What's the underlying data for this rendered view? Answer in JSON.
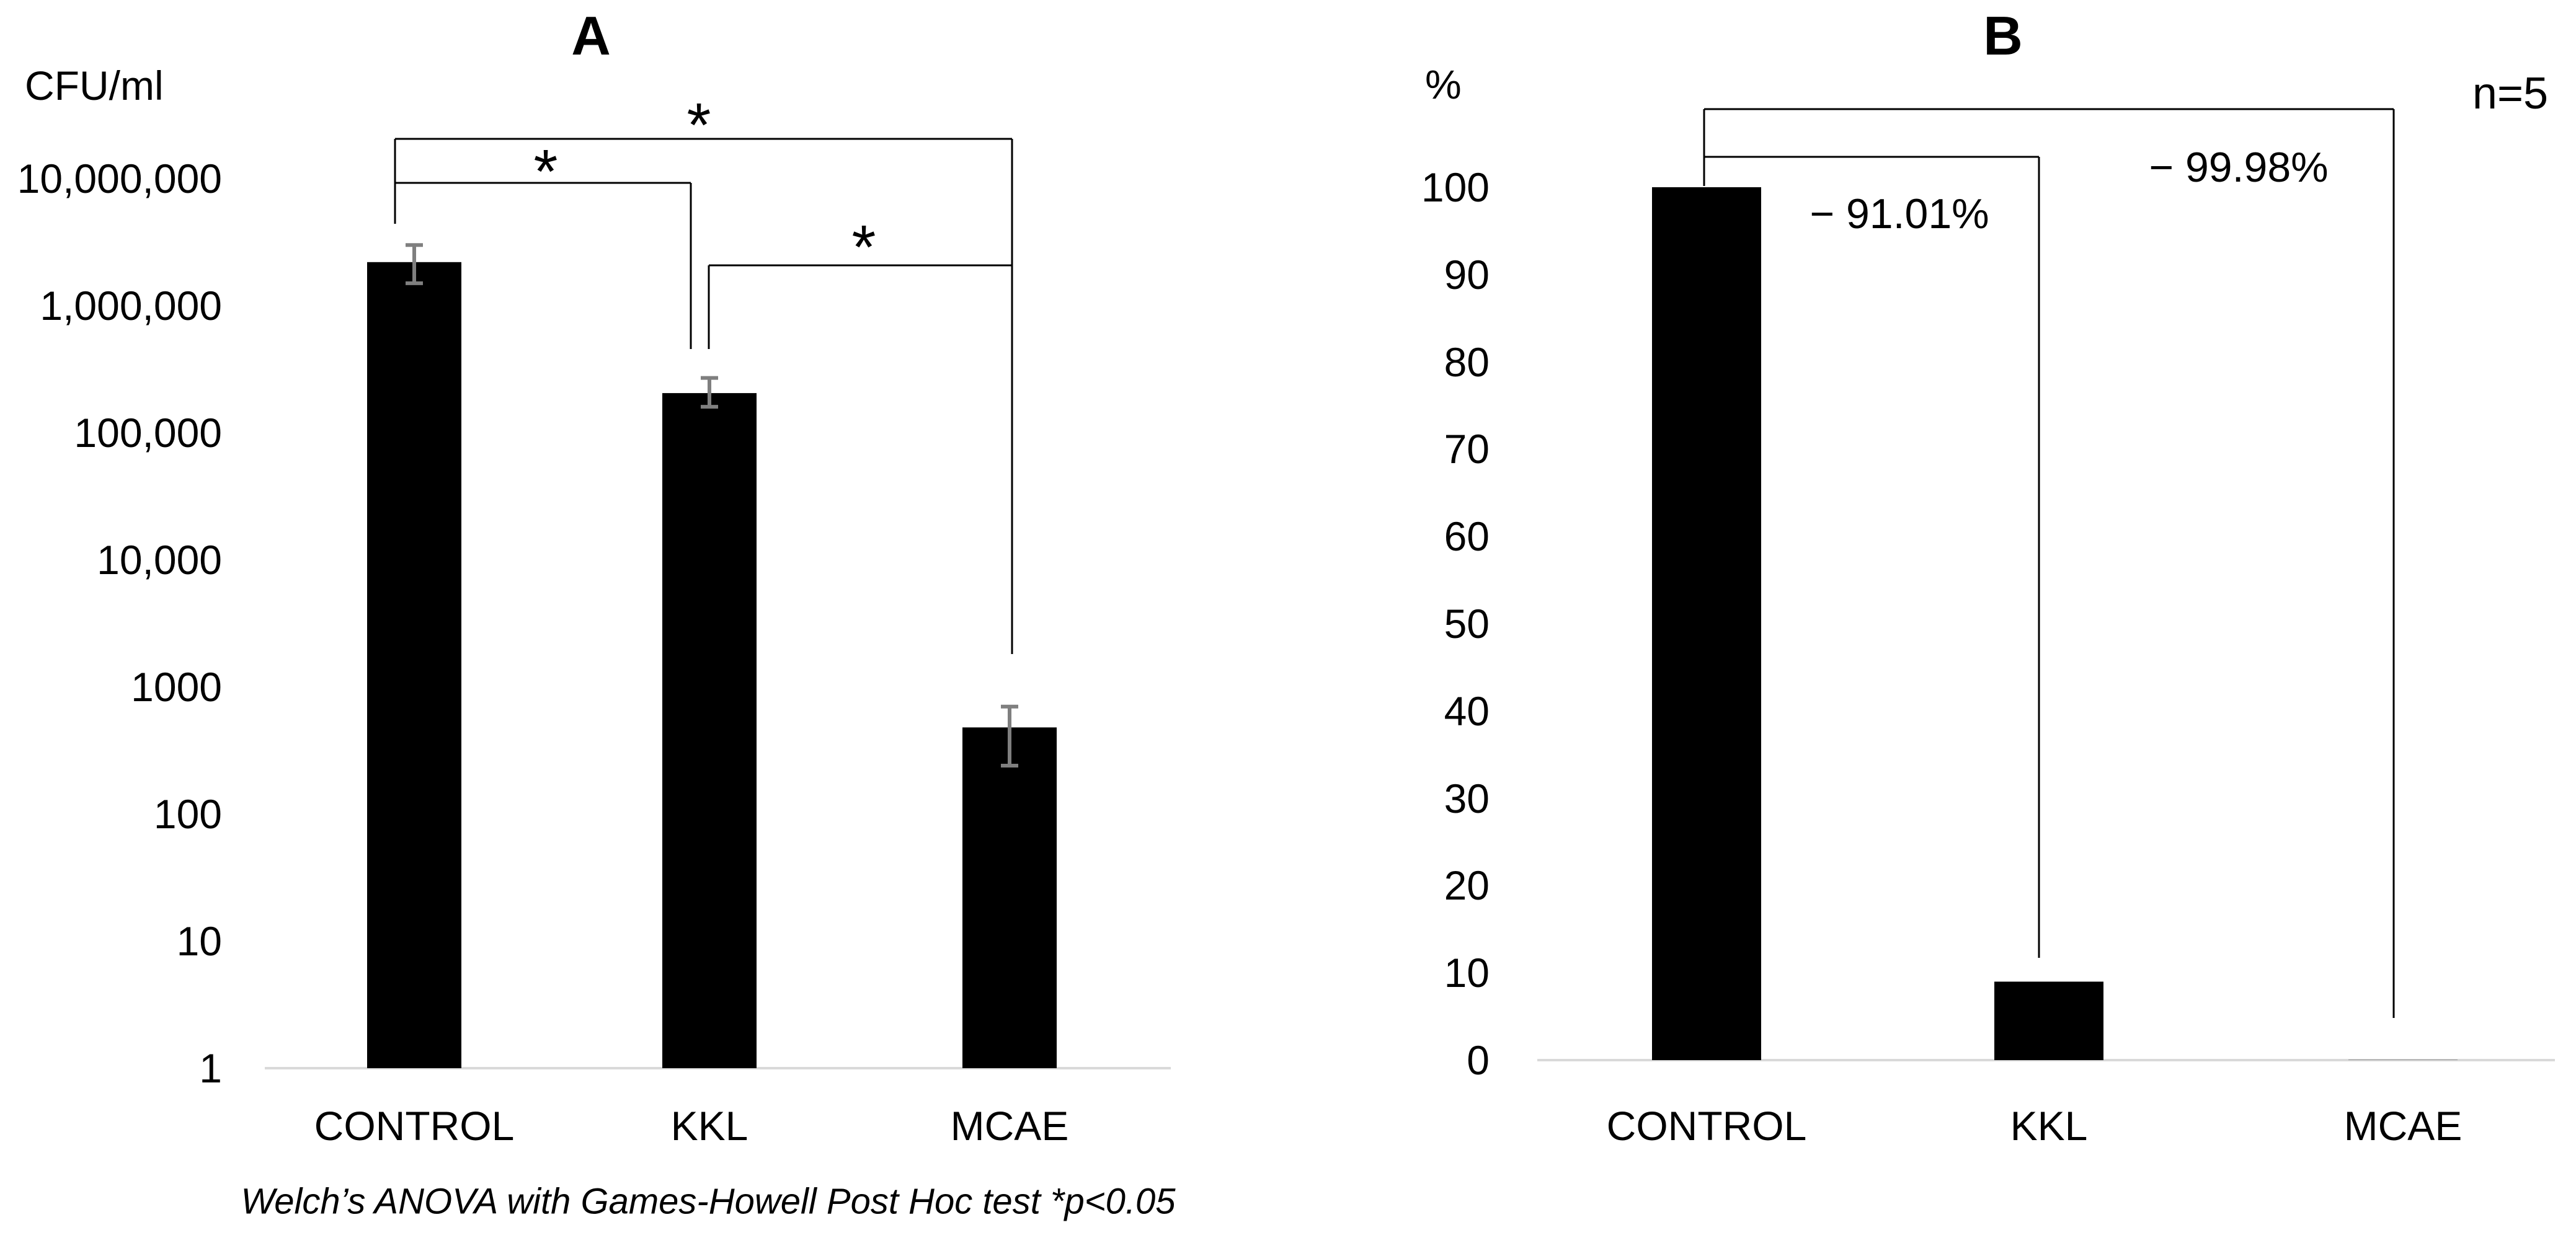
{
  "figure": {
    "caption": "Welch’s ANOVA with Games-Howell Post Hoc test *p<0.05"
  },
  "chart_data": [
    {
      "id": "A",
      "type": "bar",
      "title": "A",
      "ylabel": "CFU/ml",
      "yscale": "log",
      "ylim": [
        1,
        10000000
      ],
      "ytick_values": [
        1,
        10,
        100,
        1000,
        10000,
        100000,
        1000000,
        10000000
      ],
      "ytick_labels": [
        "1",
        "10",
        "100",
        "1000",
        "10,000",
        "100,000",
        "1,000,000",
        "10,000,000"
      ],
      "categories": [
        "CONTROL",
        "KKL",
        "MCAE"
      ],
      "values": [
        2200000,
        205000,
        480
      ],
      "error_low": [
        1500000,
        160000,
        240
      ],
      "error_high": [
        3000000,
        270000,
        700
      ],
      "significance": [
        {
          "from": "CONTROL",
          "to": "MCAE",
          "label": "*"
        },
        {
          "from": "CONTROL",
          "to": "KKL",
          "label": "*"
        },
        {
          "from": "KKL",
          "to": "MCAE",
          "label": "*"
        }
      ],
      "grid": false,
      "legend": null,
      "bar_color": "#000000",
      "error_color": "#7f7f7f",
      "axis_color": "#d9d9d9"
    },
    {
      "id": "B",
      "type": "bar",
      "title": "B",
      "ylabel": "%",
      "yscale": "linear",
      "ylim": [
        0,
        100
      ],
      "ytick_values": [
        0,
        10,
        20,
        30,
        40,
        50,
        60,
        70,
        80,
        90,
        100
      ],
      "ytick_labels": [
        "0",
        "10",
        "20",
        "30",
        "40",
        "50",
        "60",
        "70",
        "80",
        "90",
        "100"
      ],
      "categories": [
        "CONTROL",
        "KKL",
        "MCAE"
      ],
      "values": [
        100,
        8.99,
        0.02
      ],
      "note": "n=5",
      "reduction_annotations": [
        {
          "pair": [
            "CONTROL",
            "KKL"
          ],
          "text": "− 91.01%"
        },
        {
          "pair": [
            "CONTROL",
            "MCAE"
          ],
          "text": "− 99.98%"
        }
      ],
      "brackets": [
        {
          "from": "CONTROL",
          "to": "MCAE"
        },
        {
          "from": "CONTROL",
          "to": "KKL"
        }
      ],
      "grid": false,
      "legend": null,
      "bar_color": "#000000",
      "axis_color": "#d9d9d9"
    }
  ]
}
